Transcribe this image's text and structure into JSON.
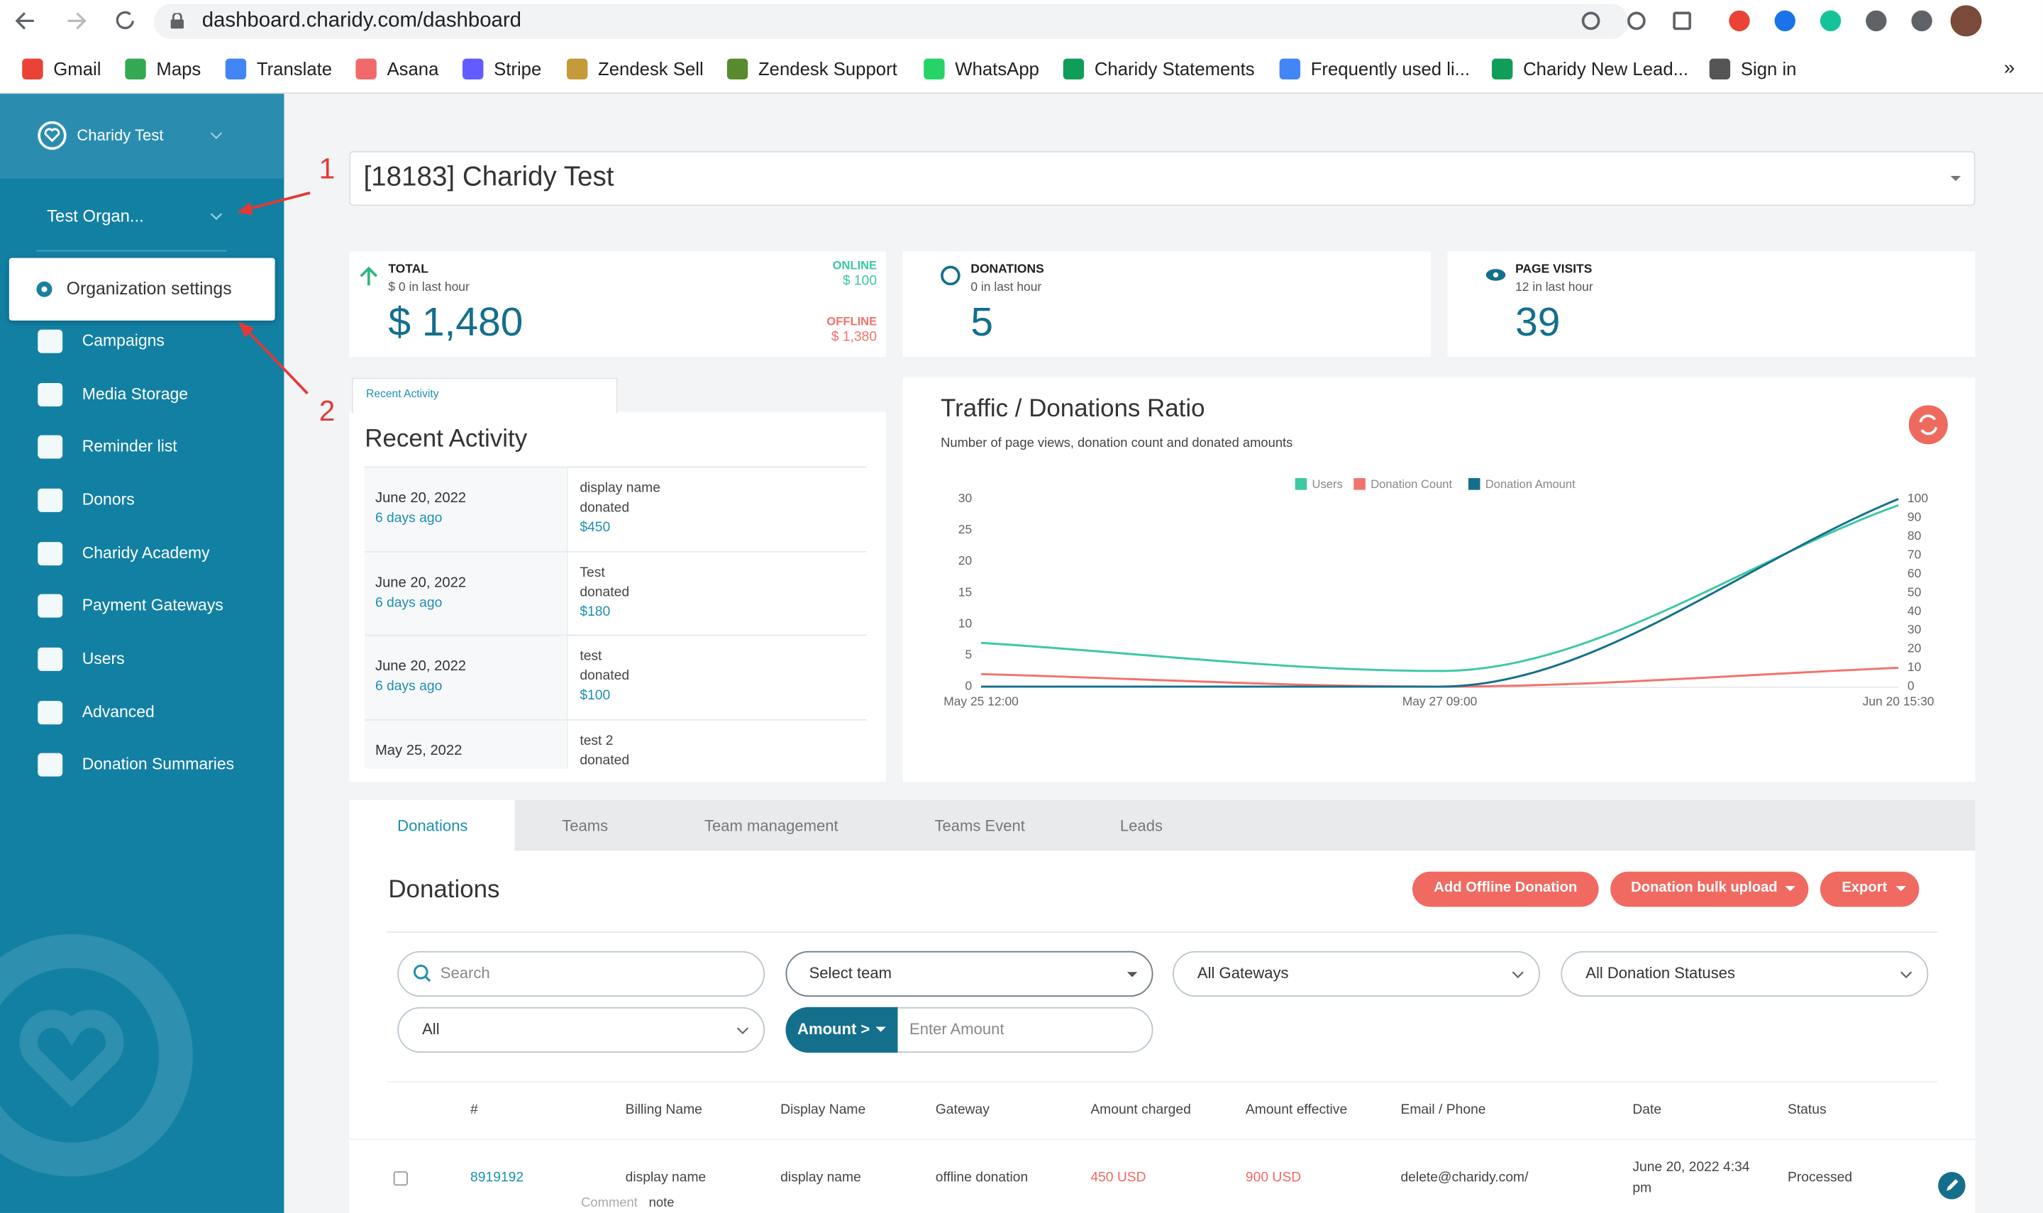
{
  "browser": {
    "url": "dashboard.charidy.com/dashboard",
    "bookmarks": [
      "Gmail",
      "Maps",
      "Translate",
      "Asana",
      "Stripe",
      "Zendesk Sell",
      "Zendesk Support",
      "WhatsApp",
      "Charidy Statements",
      "Frequently used li...",
      "Charidy New Lead...",
      "Sign in"
    ],
    "more": "»"
  },
  "sidebar": {
    "account": "Charidy Test",
    "organization": "Test Organ...",
    "popup_item": "Organization settings",
    "menu": [
      "Campaigns",
      "Media Storage",
      "Reminder list",
      "Donors",
      "Charidy Academy",
      "Payment Gateways",
      "Users",
      "Advanced",
      "Donation Summaries"
    ]
  },
  "annotations": [
    "1",
    "2"
  ],
  "campaign_select": "[18183] Charidy Test",
  "stats": {
    "total": {
      "label": "TOTAL",
      "sub": "$ 0 in last hour",
      "value": "$ 1,480",
      "online_label": "ONLINE",
      "online_value": "$ 100",
      "offline_label": "OFFLINE",
      "offline_value": "$ 1,380"
    },
    "donations": {
      "label": "DONATIONS",
      "sub": "0 in last hour",
      "value": "5"
    },
    "page_visits": {
      "label": "PAGE VISITS",
      "sub": "12 in last hour",
      "value": "39"
    }
  },
  "recent_activity": {
    "tab": "Recent Activity",
    "title": "Recent Activity",
    "items": [
      {
        "date": "June 20, 2022",
        "ago": "6 days ago",
        "name": "display name",
        "action": "donated",
        "amount": "$450"
      },
      {
        "date": "June 20, 2022",
        "ago": "6 days ago",
        "name": "Test",
        "action": "donated",
        "amount": "$180"
      },
      {
        "date": "June 20, 2022",
        "ago": "6 days ago",
        "name": "test",
        "action": "donated",
        "amount": "$100"
      },
      {
        "date": "May 25, 2022",
        "name": "test 2",
        "action": "donated"
      }
    ]
  },
  "traffic_chart": {
    "type": "line",
    "title": "Traffic / Donations Ratio",
    "subtitle": "Number of page views, donation count and donated amounts",
    "categories": [
      "May 25 12:00",
      "May 27 09:00",
      "Jun 20 15:30"
    ],
    "series": [
      {
        "name": "Users",
        "color": "#3cc8a4",
        "values": [
          7,
          2.5,
          29
        ]
      },
      {
        "name": "Donation Count",
        "color": "#f2736b",
        "values": [
          2,
          0,
          3
        ]
      },
      {
        "name": "Donation Amount",
        "color": "#146f8d",
        "values": [
          0,
          0,
          100
        ],
        "axis": "y2"
      }
    ],
    "ylim": [
      0,
      30
    ],
    "yticks": [
      0,
      5,
      10,
      15,
      20,
      25,
      30
    ],
    "y2lim": [
      0,
      100
    ],
    "y2ticks": [
      0,
      10,
      20,
      30,
      40,
      50,
      60,
      70,
      80,
      90,
      100
    ],
    "legend": "top"
  },
  "tabs": [
    "Donations",
    "Teams",
    "Team management",
    "Teams Event",
    "Leads"
  ],
  "donations": {
    "title": "Donations",
    "buttons": [
      "Add Offline Donation",
      "Donation bulk upload",
      "Export"
    ],
    "filters": {
      "search": "Search",
      "team": "Select team",
      "gateways": "All Gateways",
      "statuses": "All Donation Statuses",
      "type": "All",
      "amount_op": "Amount >",
      "amount": "Enter Amount"
    },
    "table": {
      "headers": [
        "#",
        "Billing Name",
        "Display Name",
        "Gateway",
        "Amount charged",
        "Amount effective",
        "Email / Phone",
        "Date",
        "Status"
      ],
      "rows": [
        [
          "8919192",
          "display name",
          "display name",
          "offline donation",
          "450 USD",
          "900 USD",
          "delete@charidy.com/",
          "June 20, 2022 4:34 pm",
          "Processed"
        ]
      ],
      "comment_label": "Comment",
      "comment": "note"
    }
  }
}
